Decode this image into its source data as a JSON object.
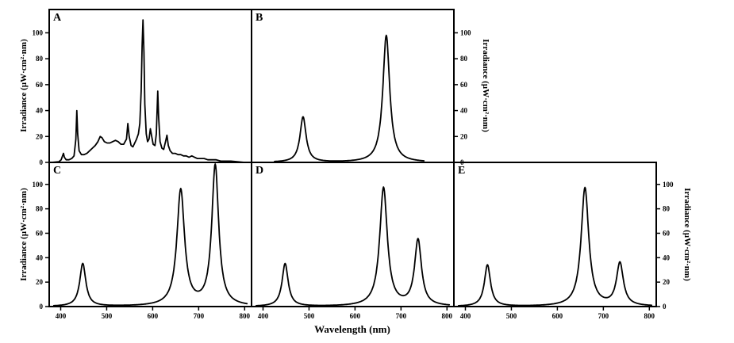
{
  "figure": {
    "xlabel": "Wavelength (nm)",
    "ylabel": "Irradiance (µW·cm²·nm)",
    "x_ticks": [
      400,
      500,
      600,
      700,
      800
    ],
    "y_ticks": [
      0,
      20,
      40,
      60,
      80,
      100
    ],
    "x_range": [
      375,
      815
    ],
    "y_range": [
      0,
      118
    ],
    "line_color": "#000000",
    "background": "#ffffff"
  },
  "panels": [
    {
      "id": "A",
      "label": "A"
    },
    {
      "id": "B",
      "label": "B"
    },
    {
      "id": "C",
      "label": "C"
    },
    {
      "id": "D",
      "label": "D"
    },
    {
      "id": "E",
      "label": "E"
    }
  ],
  "chart_data": [
    {
      "panel": "A",
      "type": "line",
      "description": "Broadband lamp spectrum with multiple sharp emission lines",
      "points": [
        [
          380,
          0
        ],
        [
          396,
          0.5
        ],
        [
          401,
          2
        ],
        [
          404,
          5
        ],
        [
          406,
          7
        ],
        [
          408,
          4
        ],
        [
          412,
          2
        ],
        [
          418,
          2
        ],
        [
          424,
          3
        ],
        [
          429,
          5
        ],
        [
          433,
          18
        ],
        [
          435,
          40
        ],
        [
          437,
          22
        ],
        [
          440,
          9
        ],
        [
          445,
          6
        ],
        [
          451,
          6
        ],
        [
          457,
          7
        ],
        [
          463,
          9
        ],
        [
          469,
          11
        ],
        [
          475,
          13
        ],
        [
          481,
          16
        ],
        [
          486,
          20
        ],
        [
          490,
          19
        ],
        [
          495,
          16
        ],
        [
          501,
          15
        ],
        [
          507,
          15
        ],
        [
          513,
          16
        ],
        [
          519,
          17
        ],
        [
          525,
          16
        ],
        [
          531,
          14
        ],
        [
          537,
          14
        ],
        [
          543,
          18
        ],
        [
          546,
          30
        ],
        [
          549,
          20
        ],
        [
          553,
          13
        ],
        [
          557,
          12
        ],
        [
          561,
          15
        ],
        [
          565,
          18
        ],
        [
          569,
          22
        ],
        [
          572,
          30
        ],
        [
          575,
          55
        ],
        [
          577,
          90
        ],
        [
          579,
          110
        ],
        [
          581,
          85
        ],
        [
          583,
          45
        ],
        [
          586,
          22
        ],
        [
          589,
          16
        ],
        [
          592,
          18
        ],
        [
          595,
          26
        ],
        [
          598,
          20
        ],
        [
          601,
          14
        ],
        [
          605,
          13
        ],
        [
          608,
          22
        ],
        [
          611,
          55
        ],
        [
          613,
          35
        ],
        [
          616,
          16
        ],
        [
          620,
          11
        ],
        [
          624,
          10
        ],
        [
          628,
          16
        ],
        [
          631,
          21
        ],
        [
          634,
          13
        ],
        [
          638,
          9
        ],
        [
          643,
          7
        ],
        [
          649,
          7
        ],
        [
          655,
          6
        ],
        [
          661,
          6
        ],
        [
          667,
          5
        ],
        [
          673,
          5
        ],
        [
          679,
          4
        ],
        [
          685,
          5
        ],
        [
          691,
          4
        ],
        [
          697,
          3
        ],
        [
          704,
          3
        ],
        [
          712,
          3
        ],
        [
          720,
          2
        ],
        [
          729,
          2
        ],
        [
          738,
          2
        ],
        [
          748,
          1
        ],
        [
          758,
          1
        ],
        [
          770,
          1
        ],
        [
          784,
          0.5
        ],
        [
          800,
          0
        ],
        [
          810,
          0
        ]
      ]
    },
    {
      "panel": "B",
      "type": "line",
      "description": "Two-peak LED spectrum: blue and red",
      "domain": [
        425,
        750
      ],
      "peaks": [
        {
          "center": 487,
          "height": 35,
          "width": 8
        },
        {
          "center": 668,
          "height": 98,
          "width": 9
        }
      ]
    },
    {
      "panel": "C",
      "type": "line",
      "description": "Three-peak LED spectrum: blue, red, strong far-red",
      "domain": [
        385,
        805
      ],
      "peaks": [
        {
          "center": 448,
          "height": 35,
          "width": 8
        },
        {
          "center": 661,
          "height": 95,
          "width": 10
        },
        {
          "center": 736,
          "height": 115,
          "width": 9
        }
      ]
    },
    {
      "panel": "D",
      "type": "line",
      "description": "Three-peak LED spectrum: blue, red, medium far-red",
      "domain": [
        385,
        805
      ],
      "peaks": [
        {
          "center": 448,
          "height": 35,
          "width": 8
        },
        {
          "center": 662,
          "height": 97,
          "width": 10
        },
        {
          "center": 737,
          "height": 54,
          "width": 9
        }
      ]
    },
    {
      "panel": "E",
      "type": "line",
      "description": "Three-peak LED spectrum: blue, red, low far-red",
      "domain": [
        385,
        805
      ],
      "peaks": [
        {
          "center": 448,
          "height": 34,
          "width": 8
        },
        {
          "center": 660,
          "height": 97,
          "width": 10
        },
        {
          "center": 736,
          "height": 35,
          "width": 9
        }
      ]
    }
  ]
}
